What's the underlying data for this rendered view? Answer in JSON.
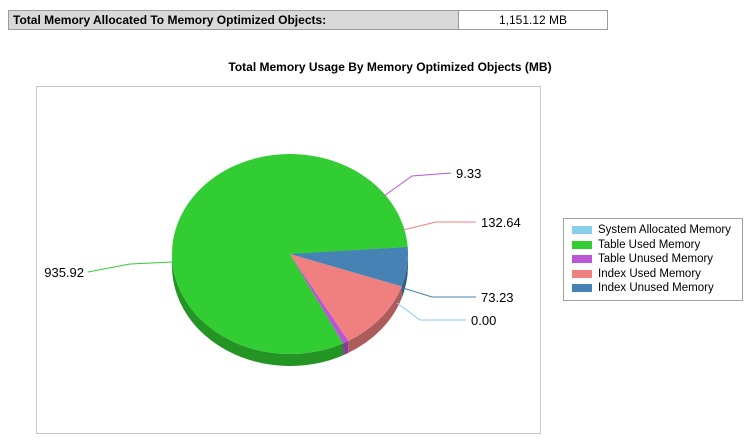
{
  "summary": {
    "label": "Total Memory Allocated To Memory Optimized Objects:",
    "value": "1,151.12 MB"
  },
  "chart_data": {
    "type": "pie",
    "title": "Total Memory Usage By Memory Optimized Objects (MB)",
    "legend_position": "right",
    "slices": [
      {
        "name": "System Allocated Memory",
        "value": 0.0,
        "label": "0.00",
        "color": "#87ceeb"
      },
      {
        "name": "Table Used Memory",
        "value": 935.92,
        "label": "935.92",
        "color": "#32cd32"
      },
      {
        "name": "Table Unused Memory",
        "value": 9.33,
        "label": "9.33",
        "color": "#ba55d3"
      },
      {
        "name": "Index Used Memory",
        "value": 132.64,
        "label": "132.64",
        "color": "#f08080"
      },
      {
        "name": "Index Unused Memory",
        "value": 73.23,
        "label": "73.23",
        "color": "#4682b4"
      }
    ]
  }
}
